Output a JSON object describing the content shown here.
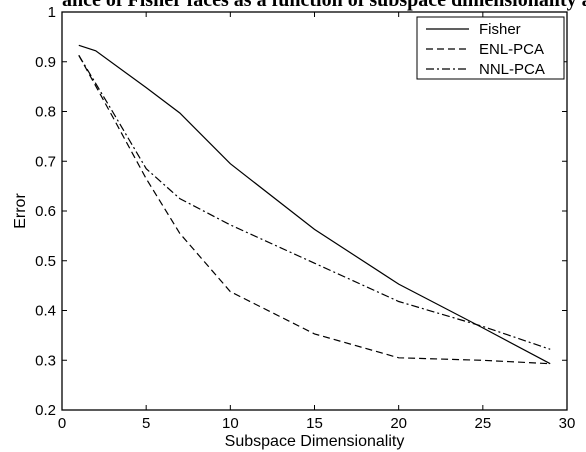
{
  "caption_fragment": "ance of Fisher faces as a function of subspace dimensionality and",
  "chart_data": {
    "type": "line",
    "title": "",
    "xlabel": "Subspace Dimensionality",
    "ylabel": "Error",
    "xlim": [
      0,
      30
    ],
    "ylim": [
      0.2,
      1.0
    ],
    "xticks": [
      0,
      5,
      10,
      15,
      20,
      25,
      30
    ],
    "yticks": [
      0.2,
      0.3,
      0.4,
      0.5,
      0.6,
      0.7,
      0.8,
      0.9,
      1.0
    ],
    "ytick_labels": [
      "0.2",
      "0.3",
      "0.4",
      "0.5",
      "0.6",
      "0.7",
      "0.8",
      "0.9",
      "1"
    ],
    "grid": false,
    "legend_position": "top-right",
    "series": [
      {
        "name": "Fisher",
        "style": "solid",
        "x": [
          1,
          2,
          5,
          7,
          10,
          15,
          20,
          25,
          29
        ],
        "y": [
          0.933,
          0.922,
          0.848,
          0.797,
          0.695,
          0.563,
          0.453,
          0.365,
          0.293
        ]
      },
      {
        "name": "ENL-PCA",
        "style": "dashed",
        "x": [
          1,
          3,
          5,
          7,
          10,
          15,
          20,
          25,
          29
        ],
        "y": [
          0.913,
          0.79,
          0.665,
          0.555,
          0.438,
          0.353,
          0.305,
          0.3,
          0.293
        ]
      },
      {
        "name": "NNL-PCA",
        "style": "dashdot",
        "x": [
          1,
          3,
          5,
          7,
          10,
          15,
          20,
          25,
          29
        ],
        "y": [
          0.913,
          0.8,
          0.685,
          0.625,
          0.572,
          0.495,
          0.418,
          0.368,
          0.322
        ]
      }
    ]
  }
}
